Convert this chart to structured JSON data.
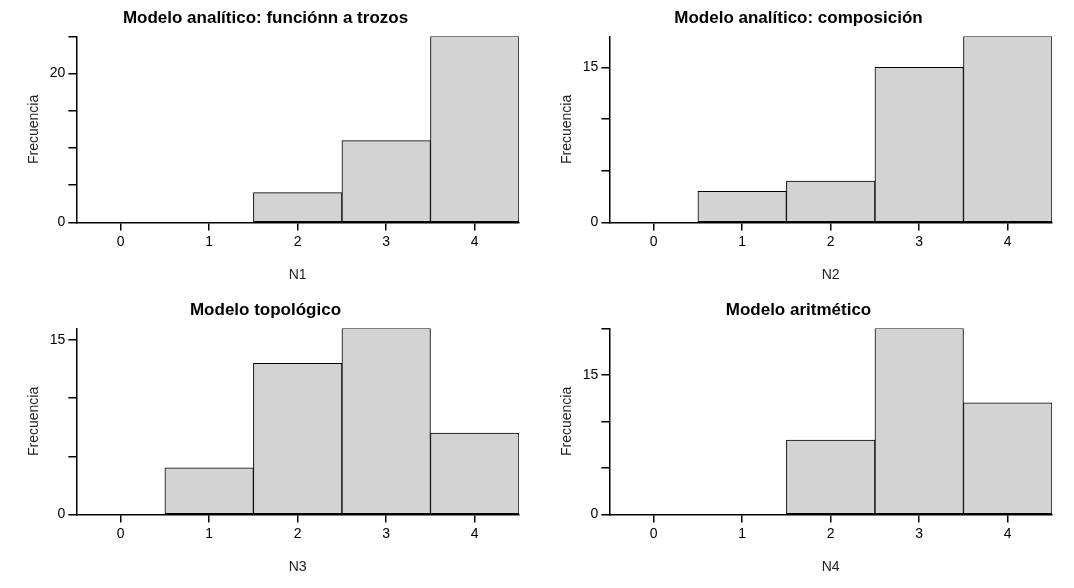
{
  "chart_data": [
    {
      "type": "histogram",
      "title": "Modelo analítico: funciónn a trozos",
      "xlabel": "N1",
      "ylabel": "Frecuencia",
      "bins": [
        -0.5,
        0.5,
        1.5,
        2.5,
        3.5,
        4.5
      ],
      "values": [
        0,
        0,
        4,
        11,
        25
      ],
      "color": "#d3d3d3",
      "xlim": [
        -0.5,
        4.5
      ],
      "xticks": [
        0,
        1,
        2,
        3,
        4
      ],
      "ylim": [
        0,
        25
      ],
      "yticks": [
        0,
        {
          "value": 5,
          "label": null
        },
        {
          "value": 10,
          "label": null
        },
        {
          "value": 15,
          "label": null
        },
        20,
        {
          "value": 25,
          "label": null
        }
      ]
    },
    {
      "type": "histogram",
      "title": "Modelo analítico: composición",
      "xlabel": "N2",
      "ylabel": "Frecuencia",
      "bins": [
        -0.5,
        0.5,
        1.5,
        2.5,
        3.5,
        4.5
      ],
      "values": [
        0,
        3,
        4,
        15,
        18
      ],
      "color": "#d3d3d3",
      "xlim": [
        -0.5,
        4.5
      ],
      "xticks": [
        0,
        1,
        2,
        3,
        4
      ],
      "ylim": [
        0,
        18
      ],
      "yticks": [
        0,
        {
          "value": 5,
          "label": null
        },
        {
          "value": 10,
          "label": null
        },
        15
      ]
    },
    {
      "type": "histogram",
      "title": "Modelo topológico",
      "xlabel": "N3",
      "ylabel": "Frecuencia",
      "bins": [
        -0.5,
        0.5,
        1.5,
        2.5,
        3.5,
        4.5
      ],
      "values": [
        0,
        4,
        13,
        16,
        7
      ],
      "color": "#d3d3d3",
      "xlim": [
        -0.5,
        4.5
      ],
      "xticks": [
        0,
        1,
        2,
        3,
        4
      ],
      "ylim": [
        0,
        16
      ],
      "yticks": [
        0,
        {
          "value": 5,
          "label": null
        },
        {
          "value": 10,
          "label": null
        },
        15
      ]
    },
    {
      "type": "histogram",
      "title": "Modelo aritmético",
      "xlabel": "N4",
      "ylabel": "Frecuencia",
      "bins": [
        -0.5,
        0.5,
        1.5,
        2.5,
        3.5,
        4.5
      ],
      "values": [
        0,
        0,
        8,
        20,
        12
      ],
      "color": "#d3d3d3",
      "xlim": [
        -0.5,
        4.5
      ],
      "xticks": [
        0,
        1,
        2,
        3,
        4
      ],
      "ylim": [
        0,
        20
      ],
      "yticks": [
        0,
        {
          "value": 5,
          "label": null
        },
        {
          "value": 10,
          "label": null
        },
        15,
        {
          "value": 20,
          "label": null
        }
      ]
    }
  ]
}
